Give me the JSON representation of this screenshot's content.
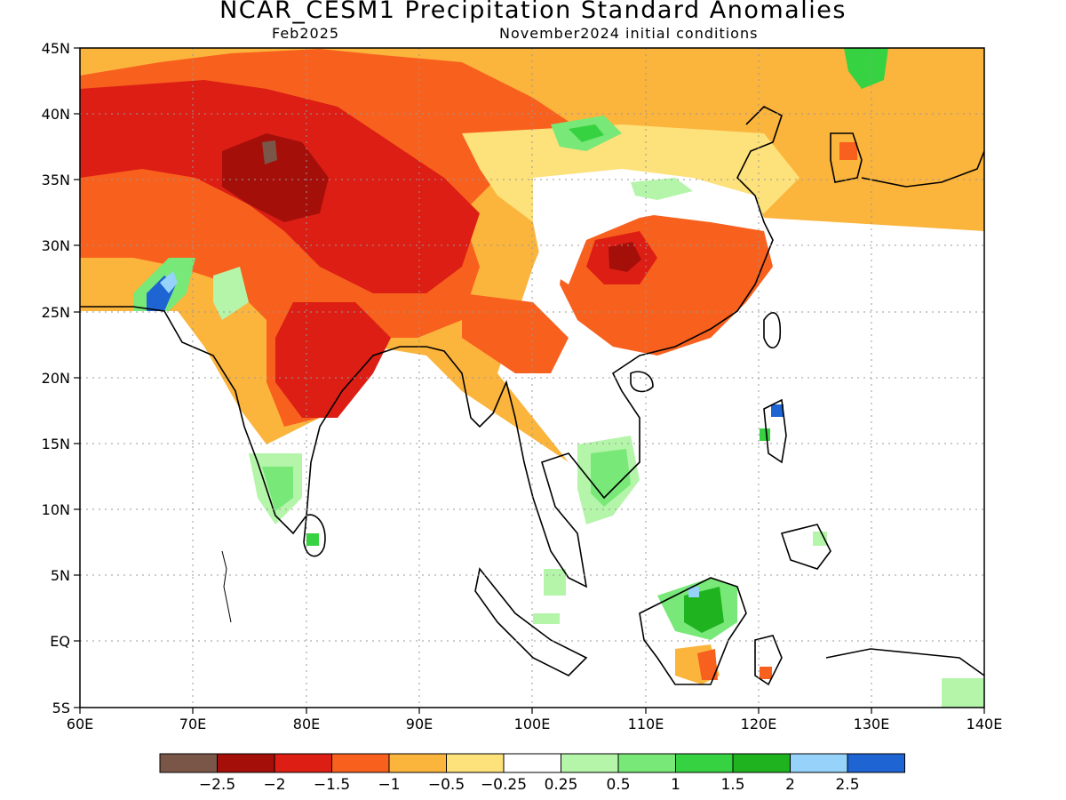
{
  "header": {
    "title": "NCAR_CESM1 Precipitation Standard Anomalies",
    "subtitle_left": "Feb2025",
    "subtitle_right": "November2024 initial conditions"
  },
  "axes": {
    "lon_labels": [
      "60E",
      "70E",
      "80E",
      "90E",
      "100E",
      "110E",
      "120E",
      "130E",
      "140E"
    ],
    "lat_labels": [
      "45N",
      "40N",
      "35N",
      "30N",
      "25N",
      "20N",
      "15N",
      "10N",
      "5N",
      "EQ",
      "5S"
    ]
  },
  "colorbar": {
    "colors": [
      "#7a5648",
      "#a50f0a",
      "#dc1e14",
      "#f8601e",
      "#fbb43c",
      "#fde17a",
      "#ffffff",
      "#b4f5aa",
      "#78e878",
      "#37d241",
      "#1fb41f",
      "#96d2fa",
      "#1e64d2"
    ],
    "labels": [
      "−2.5",
      "−2",
      "−1.5",
      "−1",
      "−0.5",
      "−0.25",
      "0.25",
      "0.5",
      "1",
      "1.5",
      "2",
      "2.5"
    ]
  }
}
